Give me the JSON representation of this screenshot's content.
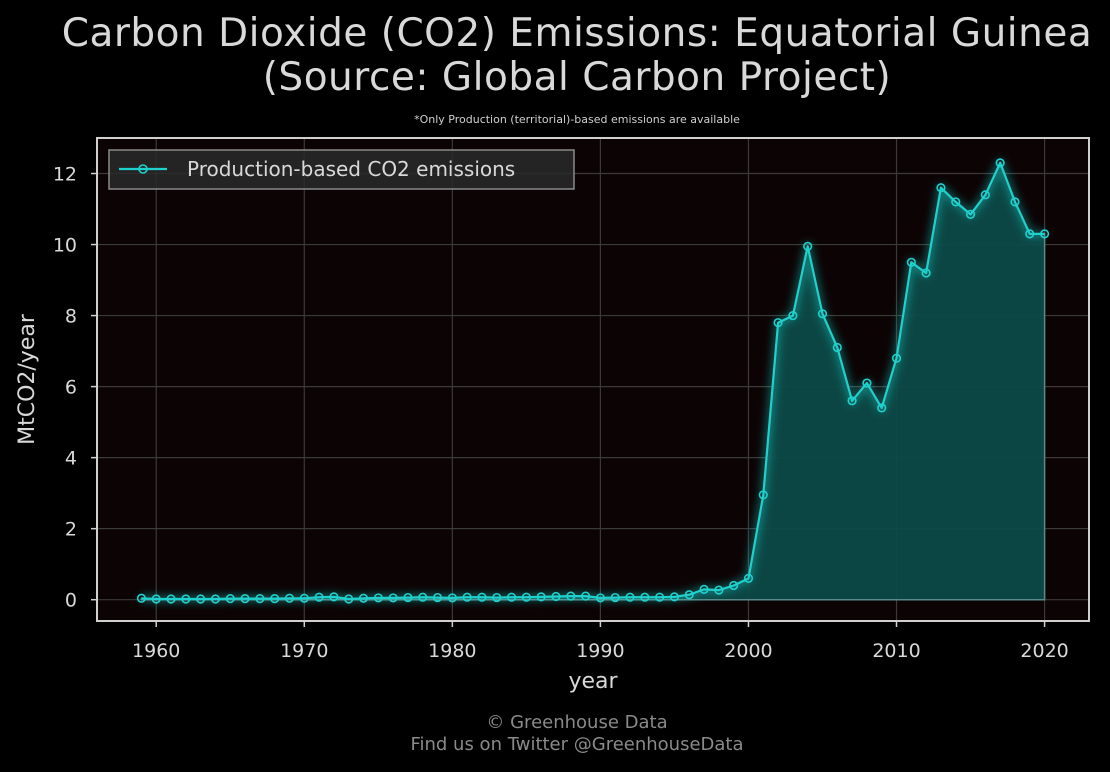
{
  "title_line1": "Carbon Dioxide (CO2) Emissions: Equatorial Guinea",
  "title_line2": "(Source: Global Carbon Project)",
  "subtitle": "*Only Production (territorial)-based emissions are available",
  "credit_line1": "© Greenhouse Data",
  "credit_line2": "Find us on Twitter @GreenhouseData",
  "colors": {
    "series": "#1fd1cc",
    "fill": "#0d4a48",
    "plot_bg": "#0c0304",
    "grid": "#3a3a3a",
    "frame": "#d0d0d0"
  },
  "chart_data": {
    "type": "area",
    "title": "Carbon Dioxide (CO2) Emissions: Equatorial Guinea (Source: Global Carbon Project)",
    "xlabel": "year",
    "ylabel": "MtCO2/year",
    "xlim": [
      1956,
      2023
    ],
    "ylim": [
      -0.6,
      13
    ],
    "xticks": [
      1960,
      1970,
      1980,
      1990,
      2000,
      2010,
      2020
    ],
    "yticks": [
      0,
      2,
      4,
      6,
      8,
      10,
      12
    ],
    "grid": true,
    "legend_position": "top-left",
    "x": [
      1959,
      1960,
      1961,
      1962,
      1963,
      1964,
      1965,
      1966,
      1967,
      1968,
      1969,
      1970,
      1971,
      1972,
      1973,
      1974,
      1975,
      1976,
      1977,
      1978,
      1979,
      1980,
      1981,
      1982,
      1983,
      1984,
      1985,
      1986,
      1987,
      1988,
      1989,
      1990,
      1991,
      1992,
      1993,
      1994,
      1995,
      1996,
      1997,
      1998,
      1999,
      2000,
      2001,
      2002,
      2003,
      2004,
      2005,
      2006,
      2007,
      2008,
      2009,
      2010,
      2011,
      2012,
      2013,
      2014,
      2015,
      2016,
      2017,
      2018,
      2019,
      2020
    ],
    "series": [
      {
        "name": "Production-based CO2 emissions",
        "values": [
          0.04,
          0.02,
          0.02,
          0.02,
          0.02,
          0.02,
          0.03,
          0.03,
          0.03,
          0.03,
          0.04,
          0.04,
          0.07,
          0.08,
          0.02,
          0.04,
          0.05,
          0.05,
          0.06,
          0.07,
          0.06,
          0.05,
          0.07,
          0.07,
          0.06,
          0.07,
          0.07,
          0.08,
          0.09,
          0.1,
          0.1,
          0.05,
          0.06,
          0.07,
          0.07,
          0.07,
          0.08,
          0.14,
          0.29,
          0.27,
          0.4,
          0.6,
          2.95,
          7.8,
          8.0,
          9.95,
          8.05,
          7.1,
          5.6,
          6.1,
          5.4,
          6.8,
          9.5,
          9.2,
          11.6,
          11.2,
          10.85,
          11.4,
          12.3,
          11.2,
          10.3,
          10.3
        ]
      }
    ]
  }
}
